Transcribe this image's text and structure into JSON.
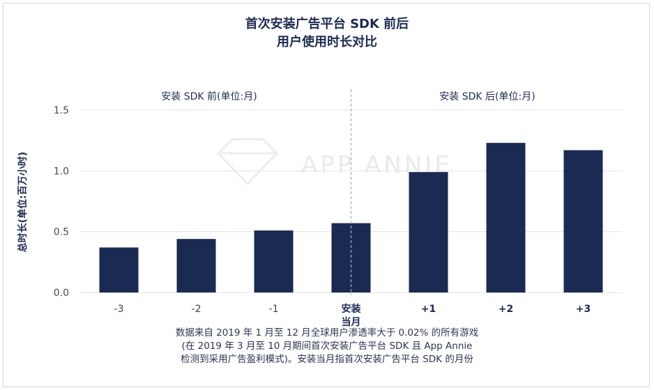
{
  "title": {
    "line1": "首次安装广告平台 SDK 前后",
    "line2": "用户使用时长对比"
  },
  "sections": {
    "before": "安装 SDK 前(单位:月)",
    "after": "安装 SDK 后(单位:月)"
  },
  "watermark": "APP ANNIE",
  "footnote": {
    "line1": "数据来自 2019 年 1 月至 12 月全球用户渗透率大于 0.02% 的所有游戏",
    "line2": "(在 2019 年 3 月至 10 月期间首次安装广告平台 SDK 且 App Annie",
    "line3": "检测到采用广告盈利模式)。安装当月指首次安装广告平台 SDK 的月份"
  },
  "colors": {
    "bar": "#1b2a52",
    "grid": "#e1e3e8",
    "divider": "#a9adb5"
  },
  "chart_data": {
    "type": "bar",
    "title": "首次安装广告平台 SDK 前后 用户使用时长对比",
    "xlabel": "",
    "ylabel": "总时长(单位:百万小时)",
    "categories": [
      "-3",
      "-2",
      "-1",
      "安装\n当月",
      "+1",
      "+2",
      "+3"
    ],
    "values": [
      0.37,
      0.44,
      0.51,
      0.57,
      0.99,
      1.23,
      1.17
    ],
    "ylim": [
      0,
      1.5
    ],
    "yticks": [
      "0.0",
      "0.5",
      "1.0",
      "1.5"
    ],
    "grid": true,
    "legend": "none"
  }
}
